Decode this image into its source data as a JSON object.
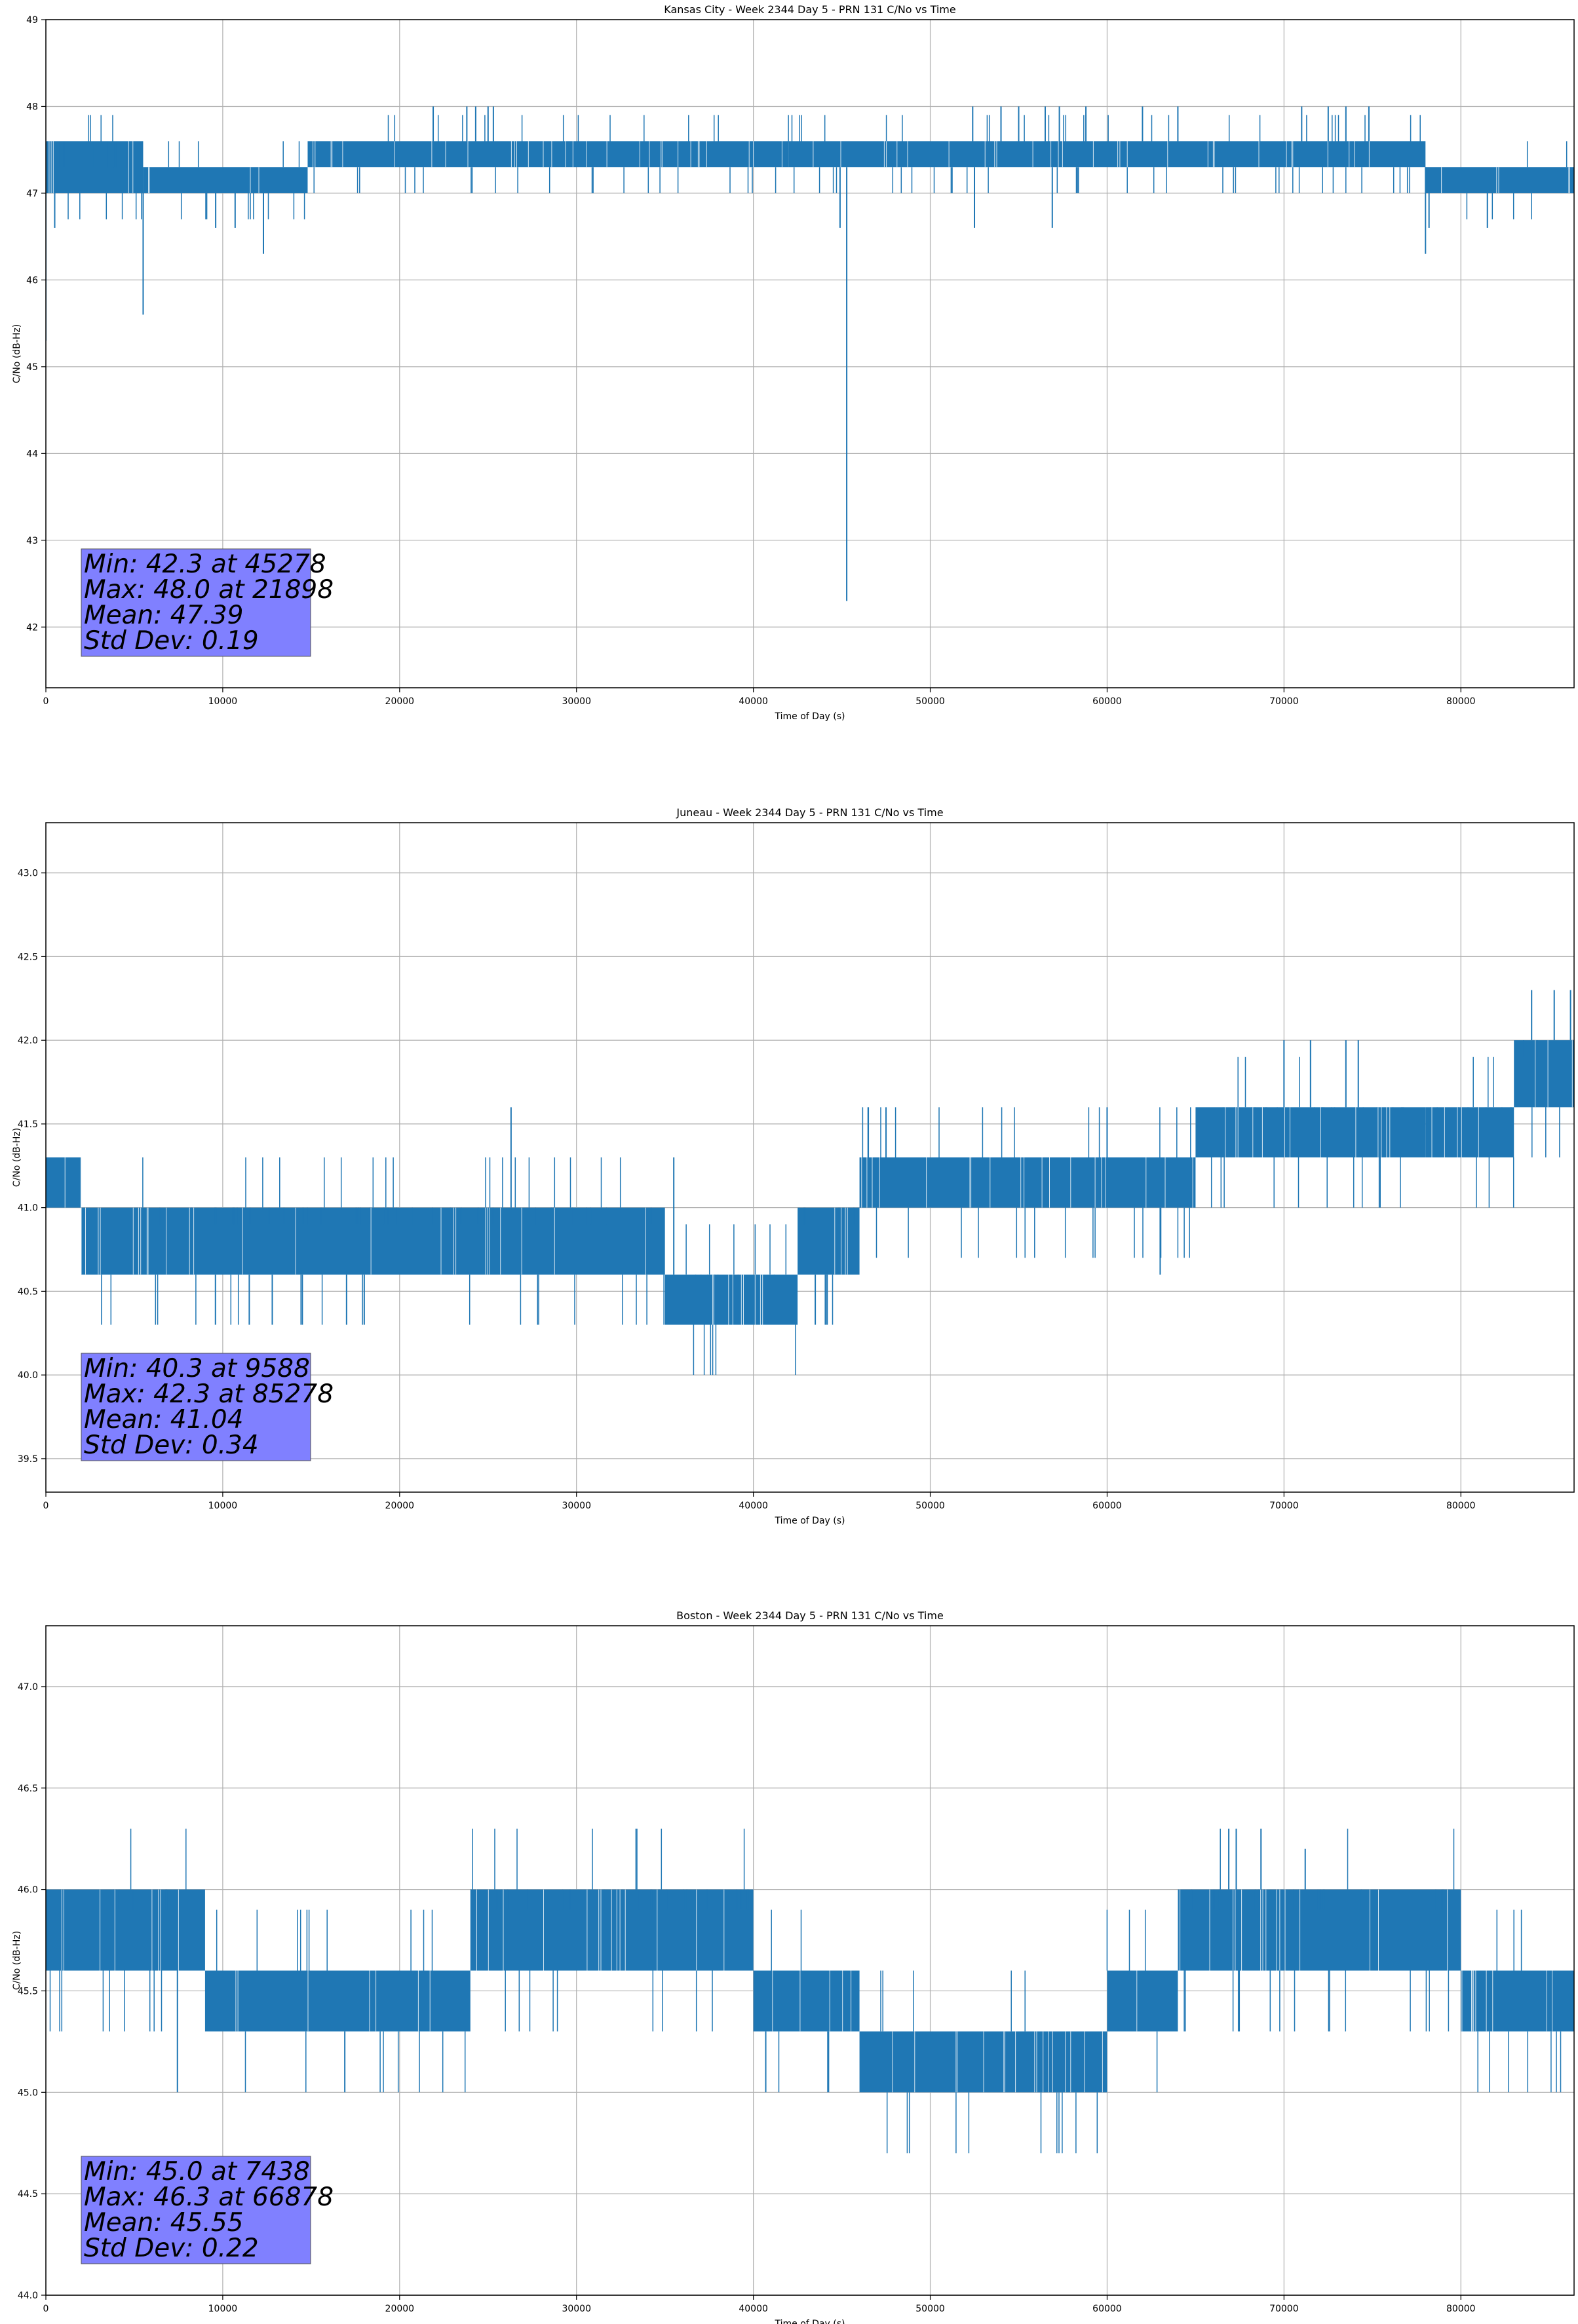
{
  "figure": {
    "background": "#ffffff",
    "line_color": "#1f77b4",
    "grid_color": "#b0b0b0",
    "stats_box_color": "#8080ff"
  },
  "chart_data": [
    {
      "type": "line",
      "title": "Kansas City - Week 2344 Day 5 - PRN 131 C/No vs Time",
      "xlabel": "Time of Day (s)",
      "ylabel": "C/No (dB-Hz)",
      "xlim": [
        0,
        86400
      ],
      "ylim": [
        41.3,
        49.0
      ],
      "xticks": [
        0,
        10000,
        20000,
        30000,
        40000,
        50000,
        60000,
        70000,
        80000
      ],
      "yticks": [
        42,
        43,
        44,
        45,
        46,
        47,
        48,
        49
      ],
      "ytick_labels": [
        "42",
        "43",
        "44",
        "45",
        "46",
        "47",
        "48",
        "49"
      ],
      "grid": true,
      "series": [
        {
          "band_segments": [
            {
              "x_start": 0,
              "x_end": 5500,
              "low": 47.0,
              "high": 47.6
            },
            {
              "x_start": 5500,
              "x_end": 14800,
              "low": 47.0,
              "high": 47.3
            },
            {
              "x_start": 14800,
              "x_end": 42000,
              "low": 47.3,
              "high": 47.6
            },
            {
              "x_start": 42000,
              "x_end": 78000,
              "low": 47.3,
              "high": 47.6
            },
            {
              "x_start": 78000,
              "x_end": 86400,
              "low": 47.0,
              "high": 47.3
            }
          ],
          "spikes": [
            {
              "x": 0,
              "y": 45.3
            },
            {
              "x": 500,
              "y": 46.6
            },
            {
              "x": 5500,
              "y": 45.6
            },
            {
              "x": 9600,
              "y": 46.6
            },
            {
              "x": 10700,
              "y": 46.6
            },
            {
              "x": 12300,
              "y": 46.3
            },
            {
              "x": 21898,
              "y": 48.0
            },
            {
              "x": 23800,
              "y": 48.0
            },
            {
              "x": 24300,
              "y": 48.0
            },
            {
              "x": 25000,
              "y": 48.0
            },
            {
              "x": 25300,
              "y": 48.0
            },
            {
              "x": 44900,
              "y": 46.6
            },
            {
              "x": 45278,
              "y": 42.3
            },
            {
              "x": 52500,
              "y": 46.6
            },
            {
              "x": 56900,
              "y": 46.6
            },
            {
              "x": 52400,
              "y": 48.0
            },
            {
              "x": 54000,
              "y": 48.0
            },
            {
              "x": 55000,
              "y": 48.0
            },
            {
              "x": 56500,
              "y": 48.0
            },
            {
              "x": 57300,
              "y": 48.0
            },
            {
              "x": 58800,
              "y": 48.0
            },
            {
              "x": 62000,
              "y": 48.0
            },
            {
              "x": 64000,
              "y": 48.0
            },
            {
              "x": 71000,
              "y": 48.0
            },
            {
              "x": 72500,
              "y": 48.0
            },
            {
              "x": 73500,
              "y": 48.0
            },
            {
              "x": 74800,
              "y": 48.0
            },
            {
              "x": 78000,
              "y": 46.3
            },
            {
              "x": 78200,
              "y": 46.6
            },
            {
              "x": 81500,
              "y": 46.6
            }
          ]
        }
      ],
      "stats": [
        "Min: 42.3 at 45278",
        "Max: 48.0 at 21898",
        "Mean: 47.39",
        "Std Dev: 0.19"
      ]
    },
    {
      "type": "line",
      "title": "Juneau - Week 2344 Day 5 - PRN 131 C/No vs Time",
      "xlabel": "Time of Day (s)",
      "ylabel": "C/No (dB-Hz)",
      "xlim": [
        0,
        86400
      ],
      "ylim": [
        39.3,
        43.3
      ],
      "xticks": [
        0,
        10000,
        20000,
        30000,
        40000,
        50000,
        60000,
        70000,
        80000
      ],
      "yticks": [
        39.5,
        40.0,
        40.5,
        41.0,
        41.5,
        42.0,
        42.5,
        43.0
      ],
      "ytick_labels": [
        "39.5",
        "40.0",
        "40.5",
        "41.0",
        "41.5",
        "42.0",
        "42.5",
        "43.0"
      ],
      "grid": true,
      "series": [
        {
          "band_segments": [
            {
              "x_start": 0,
              "x_end": 2000,
              "low": 41.0,
              "high": 41.3
            },
            {
              "x_start": 2000,
              "x_end": 35000,
              "low": 40.6,
              "high": 41.0
            },
            {
              "x_start": 35000,
              "x_end": 42500,
              "low": 40.3,
              "high": 40.6
            },
            {
              "x_start": 42500,
              "x_end": 46000,
              "low": 40.6,
              "high": 41.0
            },
            {
              "x_start": 46000,
              "x_end": 65000,
              "low": 41.0,
              "high": 41.3
            },
            {
              "x_start": 65000,
              "x_end": 78000,
              "low": 41.3,
              "high": 41.6
            },
            {
              "x_start": 78000,
              "x_end": 83000,
              "low": 41.3,
              "high": 41.6
            },
            {
              "x_start": 83000,
              "x_end": 86400,
              "low": 41.6,
              "high": 42.0
            }
          ],
          "spikes": [
            {
              "x": 9588,
              "y": 40.3
            },
            {
              "x": 11500,
              "y": 40.3
            },
            {
              "x": 12800,
              "y": 40.3
            },
            {
              "x": 14500,
              "y": 40.3
            },
            {
              "x": 17000,
              "y": 40.3
            },
            {
              "x": 18000,
              "y": 40.3
            },
            {
              "x": 26300,
              "y": 41.6
            },
            {
              "x": 35500,
              "y": 41.3
            },
            {
              "x": 43500,
              "y": 40.3
            },
            {
              "x": 46500,
              "y": 41.6
            },
            {
              "x": 47500,
              "y": 41.6
            },
            {
              "x": 60000,
              "y": 41.6
            },
            {
              "x": 63000,
              "y": 40.6
            },
            {
              "x": 70000,
              "y": 42.0
            },
            {
              "x": 71500,
              "y": 42.0
            },
            {
              "x": 73500,
              "y": 42.0
            },
            {
              "x": 74200,
              "y": 42.0
            },
            {
              "x": 84000,
              "y": 42.3
            },
            {
              "x": 85278,
              "y": 42.3
            },
            {
              "x": 86200,
              "y": 42.3
            }
          ]
        }
      ],
      "stats": [
        "Min: 40.3 at 9588",
        "Max: 42.3 at 85278",
        "Mean: 41.04",
        "Std Dev: 0.34"
      ]
    },
    {
      "type": "line",
      "title": "Boston - Week 2344 Day 5 - PRN 131 C/No vs Time",
      "xlabel": "Time of Day (s)",
      "ylabel": "C/No (dB-Hz)",
      "xlim": [
        0,
        86400
      ],
      "ylim": [
        44.0,
        47.3
      ],
      "xticks": [
        0,
        10000,
        20000,
        30000,
        40000,
        50000,
        60000,
        70000,
        80000
      ],
      "yticks": [
        44.0,
        44.5,
        45.0,
        45.5,
        46.0,
        46.5,
        47.0
      ],
      "ytick_labels": [
        "44.0",
        "44.5",
        "45.0",
        "45.5",
        "46.0",
        "46.5",
        "47.0"
      ],
      "grid": true,
      "series": [
        {
          "band_segments": [
            {
              "x_start": 0,
              "x_end": 9000,
              "low": 45.6,
              "high": 46.0
            },
            {
              "x_start": 9000,
              "x_end": 24000,
              "low": 45.3,
              "high": 45.6
            },
            {
              "x_start": 24000,
              "x_end": 40000,
              "low": 45.6,
              "high": 46.0
            },
            {
              "x_start": 40000,
              "x_end": 46000,
              "low": 45.3,
              "high": 45.6
            },
            {
              "x_start": 46000,
              "x_end": 60000,
              "low": 45.0,
              "high": 45.3
            },
            {
              "x_start": 60000,
              "x_end": 64000,
              "low": 45.3,
              "high": 45.6
            },
            {
              "x_start": 64000,
              "x_end": 80000,
              "low": 45.6,
              "high": 46.0
            },
            {
              "x_start": 80000,
              "x_end": 86400,
              "low": 45.3,
              "high": 45.6
            }
          ],
          "spikes": [
            {
              "x": 7438,
              "y": 45.0
            },
            {
              "x": 16900,
              "y": 45.0
            },
            {
              "x": 40700,
              "y": 45.0
            },
            {
              "x": 66878,
              "y": 46.3
            },
            {
              "x": 67300,
              "y": 46.3
            },
            {
              "x": 68700,
              "y": 46.3
            },
            {
              "x": 71200,
              "y": 46.2
            }
          ]
        }
      ],
      "stats": [
        "Min: 45.0 at 7438",
        "Max: 46.3 at 66878",
        "Mean: 45.55",
        "Std Dev: 0.22"
      ]
    }
  ]
}
